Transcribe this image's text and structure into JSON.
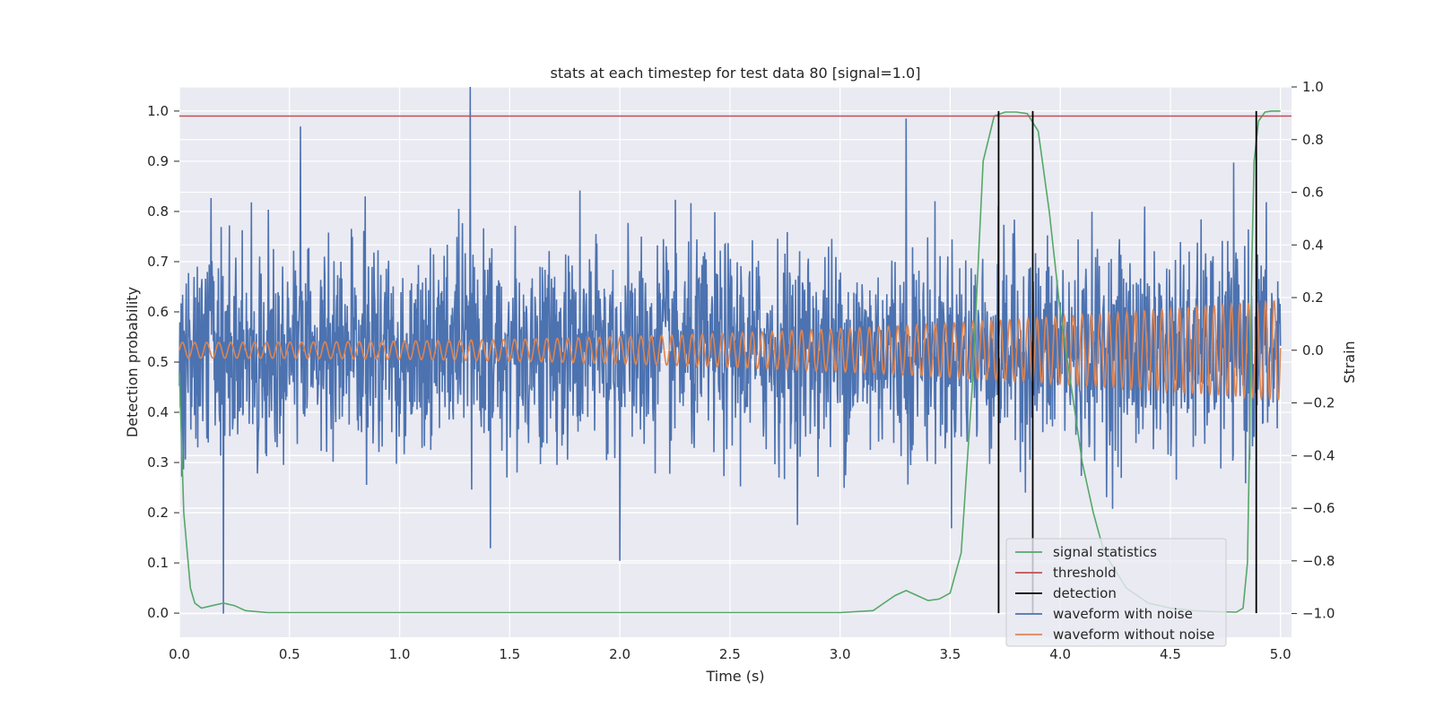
{
  "chart_data": {
    "type": "line",
    "title": "stats at each timestep for test data 80 [signal=1.0]",
    "xlabel": "Time (s)",
    "ylabel": "Detection probability",
    "ylabel_right": "Strain",
    "xlim": [
      0.0,
      5.05
    ],
    "ylim": [
      -0.048,
      1.048
    ],
    "ylim_right": [
      -1.09,
      1.0
    ],
    "x_ticks": [
      "0.0",
      "0.5",
      "1.0",
      "1.5",
      "2.0",
      "2.5",
      "3.0",
      "3.5",
      "4.0",
      "4.5",
      "5.0"
    ],
    "y_ticks": [
      "0.0",
      "0.1",
      "0.2",
      "0.3",
      "0.4",
      "0.5",
      "0.6",
      "0.7",
      "0.8",
      "0.9",
      "1.0"
    ],
    "y_ticks_right": [
      "−1.0",
      "−0.8",
      "−0.6",
      "−0.4",
      "−0.2",
      "0.0",
      "0.2",
      "0.4",
      "0.6",
      "0.8",
      "1.0"
    ],
    "grid": true,
    "legend_position": "lower-right",
    "series": [
      {
        "name": "signal statistics",
        "axis": "left",
        "color": "#55a868",
        "x": [
          0.0,
          0.02,
          0.05,
          0.07,
          0.1,
          0.15,
          0.2,
          0.25,
          0.3,
          0.4,
          0.5,
          1.0,
          1.5,
          2.0,
          2.5,
          3.0,
          3.15,
          3.2,
          3.25,
          3.3,
          3.35,
          3.4,
          3.45,
          3.5,
          3.55,
          3.6,
          3.65,
          3.7,
          3.75,
          3.8,
          3.85,
          3.9,
          3.95,
          4.0,
          4.05,
          4.1,
          4.15,
          4.2,
          4.3,
          4.4,
          4.5,
          4.6,
          4.7,
          4.8,
          4.83,
          4.85,
          4.86,
          4.87,
          4.88,
          4.9,
          4.93,
          4.96,
          5.0
        ],
        "y": [
          0.48,
          0.2,
          0.05,
          0.02,
          0.01,
          0.015,
          0.02,
          0.015,
          0.005,
          0.001,
          0.001,
          0.001,
          0.001,
          0.001,
          0.001,
          0.001,
          0.005,
          0.02,
          0.035,
          0.045,
          0.035,
          0.025,
          0.028,
          0.04,
          0.12,
          0.45,
          0.9,
          0.99,
          0.998,
          0.998,
          0.995,
          0.96,
          0.8,
          0.6,
          0.45,
          0.3,
          0.2,
          0.12,
          0.05,
          0.02,
          0.01,
          0.005,
          0.003,
          0.002,
          0.01,
          0.1,
          0.35,
          0.7,
          0.9,
          0.98,
          0.998,
          1.0,
          1.0
        ]
      },
      {
        "name": "threshold",
        "axis": "left",
        "color": "#c44e52",
        "x": [
          0.0,
          5.05
        ],
        "y": [
          0.99,
          0.99
        ]
      },
      {
        "name": "detection",
        "axis": "left",
        "color": "#000000",
        "x": [
          3.72,
          3.875,
          4.89
        ],
        "y_range": [
          0.0,
          1.0
        ]
      },
      {
        "name": "waveform with noise",
        "axis": "right",
        "color": "#4c72b0",
        "description_x_range": [
          0.0,
          5.0
        ],
        "envelope_min": -1.0,
        "envelope_max": 1.0,
        "peak_x": [
          0.2,
          0.55,
          1.32,
          2.0,
          3.3
        ],
        "peak_y": [
          -1.0,
          0.85,
          1.0,
          -0.8,
          0.88
        ]
      },
      {
        "name": "waveform without noise",
        "axis": "right",
        "color": "#dd8452",
        "x_range": [
          0.0,
          5.0
        ],
        "amplitude_start": 0.03,
        "amplitude_end": 0.19,
        "freq_start_hz": 18,
        "freq_end_hz": 26
      }
    ]
  }
}
